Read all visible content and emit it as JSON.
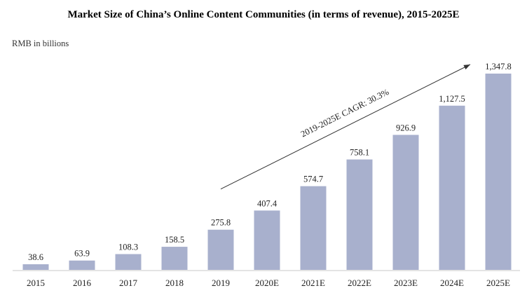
{
  "chart_data": {
    "type": "bar",
    "title": "Market Size of China’s Online Content Communities (in terms of revenue), 2015-2025E",
    "ylabel": "RMB in billions",
    "xlabel": "",
    "categories": [
      "2015",
      "2016",
      "2017",
      "2018",
      "2019",
      "2020E",
      "2021E",
      "2022E",
      "2023E",
      "2024E",
      "2025E"
    ],
    "values": [
      38.6,
      63.9,
      108.3,
      158.5,
      275.8,
      407.4,
      574.7,
      758.1,
      926.9,
      1127.5,
      1347.8
    ],
    "value_labels": [
      "38.6",
      "63.9",
      "108.3",
      "158.5",
      "275.8",
      "407.4",
      "574.7",
      "758.1",
      "926.9",
      "1,127.5",
      "1,347.8"
    ],
    "ylim": [
      0,
      1347.8
    ],
    "grid": false,
    "bar_color": "#a8b0cd",
    "annotation": {
      "text": "2019-2025E CAGR: 30.3%",
      "from_category": "2019",
      "to_category": "2025E"
    }
  }
}
